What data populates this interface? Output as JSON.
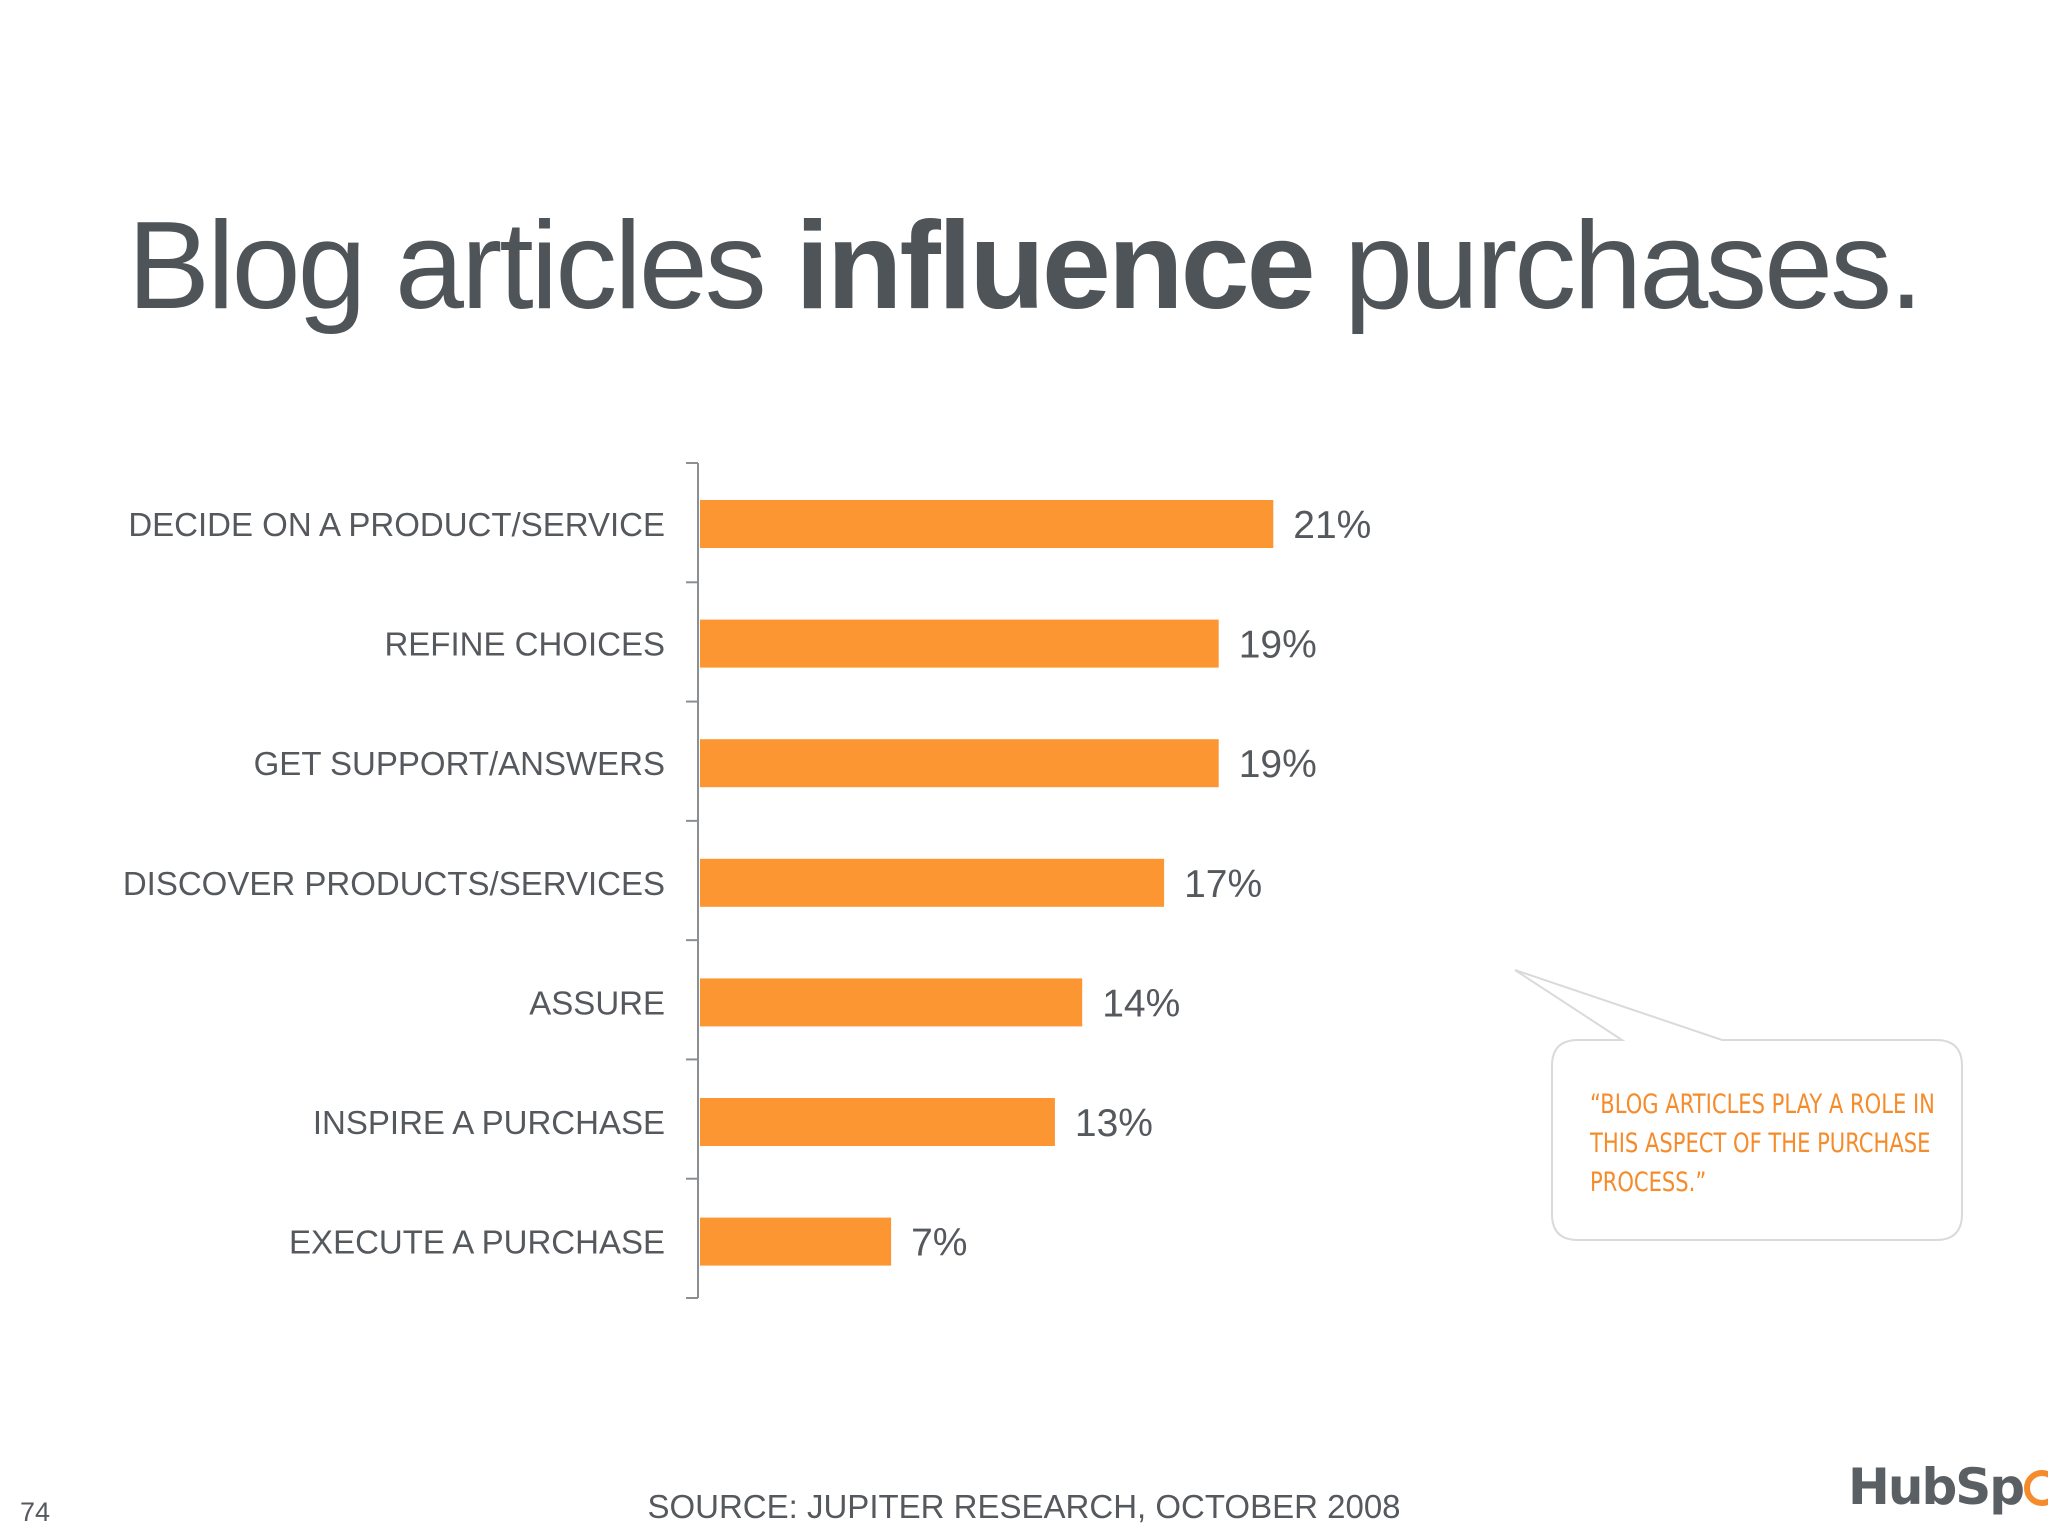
{
  "title": {
    "part1": "Blog articles ",
    "emphasis": "influence",
    "part2": " purchases."
  },
  "chart_data": {
    "type": "bar",
    "orientation": "horizontal",
    "categories": [
      "DECIDE ON A PRODUCT/SERVICE",
      "REFINE CHOICES",
      "GET SUPPORT/ANSWERS",
      "DISCOVER PRODUCTS/SERVICES",
      "ASSURE",
      "INSPIRE A PURCHASE",
      "EXECUTE A PURCHASE"
    ],
    "values": [
      21,
      19,
      19,
      17,
      14,
      13,
      7
    ],
    "value_labels": [
      "21%",
      "19%",
      "19%",
      "17%",
      "14%",
      "13%",
      "7%"
    ],
    "xlim": [
      0,
      21
    ],
    "grid": false,
    "legend": "none",
    "bar_color": "#fb9633"
  },
  "callout": {
    "line1": "“BLOG ARTICLES PLAY A ROLE IN",
    "line2": "THIS ASPECT OF THE PURCHASE",
    "line3": "PROCESS.”",
    "text_color": "#f58b2a"
  },
  "source": "SOURCE: JUPITER RESEARCH, OCTOBER 2008",
  "page_number": "74",
  "logo": {
    "part1": "HubSp",
    "part2": "t",
    "accent_color": "#f58b2a"
  }
}
